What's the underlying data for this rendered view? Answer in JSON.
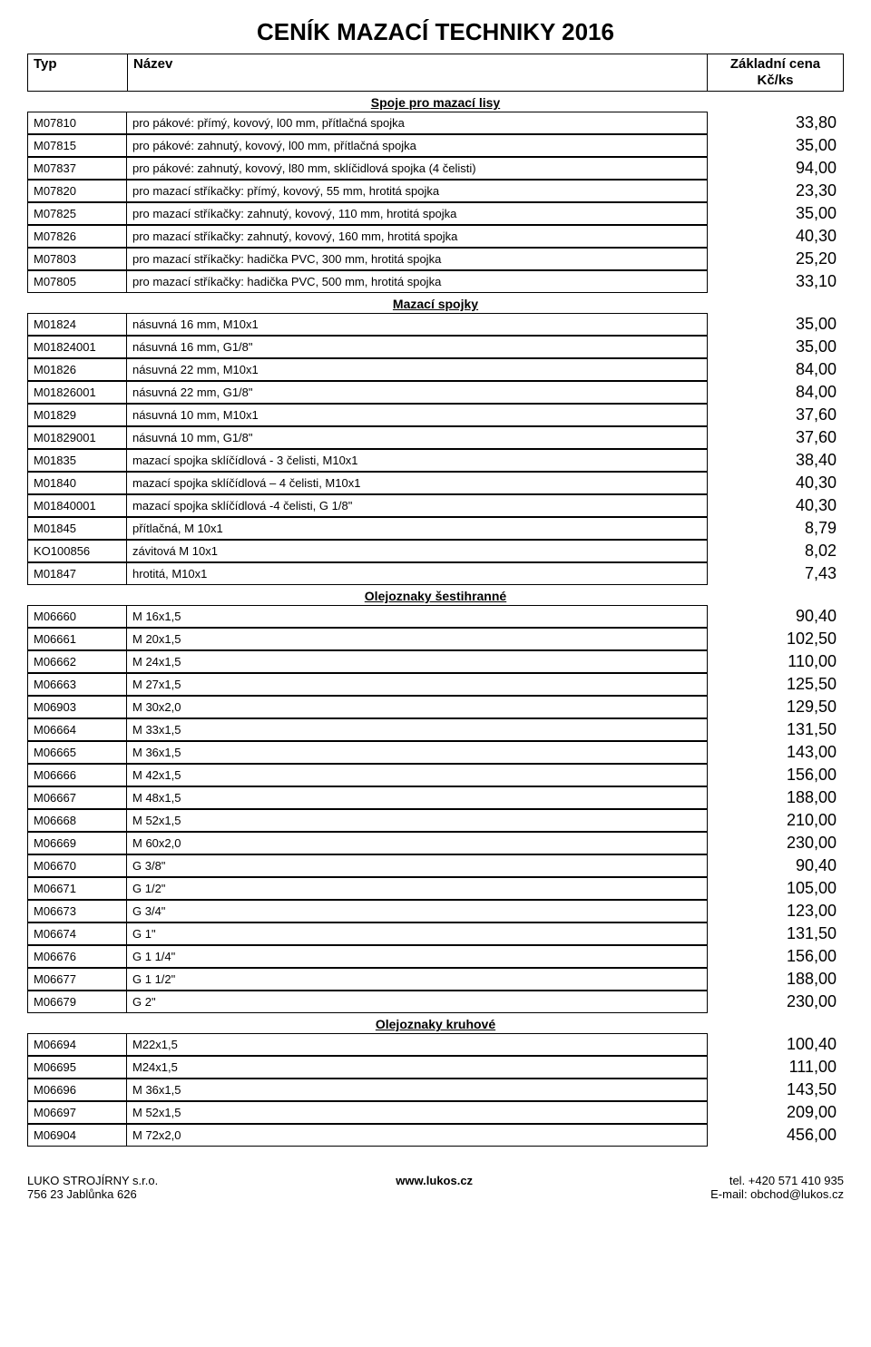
{
  "title": "CENÍK MAZACÍ TECHNIKY  2016",
  "header": {
    "typ": "Typ",
    "nazev": "Název",
    "cena": "Základní cena Kč/ks"
  },
  "sections": [
    {
      "title": "Spoje pro mazací lisy",
      "rows": [
        {
          "typ": "M07810",
          "nazev": "pro pákové: přímý, kovový, l00 mm, přítlačná spojka",
          "cena": "33,80"
        },
        {
          "typ": "M07815",
          "nazev": "pro pákové: zahnutý, kovový, l00 mm, přítlačná spojka",
          "cena": "35,00"
        },
        {
          "typ": "M07837",
          "nazev": "pro pákové: zahnutý, kovový, l80 mm, sklíčidlová spojka (4 čelisti)",
          "cena": "94,00"
        },
        {
          "typ": "M07820",
          "nazev": "pro mazací stříkačky: přímý, kovový, 55 mm, hrotitá spojka",
          "cena": "23,30"
        },
        {
          "typ": "M07825",
          "nazev": "pro mazací stříkačky: zahnutý, kovový, 110 mm, hrotitá spojka",
          "cena": "35,00"
        },
        {
          "typ": "M07826",
          "nazev": "pro mazací stříkačky: zahnutý, kovový, 160 mm, hrotitá spojka",
          "cena": "40,30"
        },
        {
          "typ": "M07803",
          "nazev": "pro mazací stříkačky: hadička PVC, 300 mm, hrotitá spojka",
          "cena": "25,20"
        },
        {
          "typ": "M07805",
          "nazev": "pro mazací stříkačky: hadička PVC, 500 mm, hrotitá spojka",
          "cena": "33,10"
        }
      ]
    },
    {
      "title": "Mazací spojky",
      "rows": [
        {
          "typ": "M01824",
          "nazev": "násuvná 16 mm, M10x1",
          "cena": "35,00"
        },
        {
          "typ": "M01824001",
          "nazev": "násuvná 16 mm, G1/8\"",
          "cena": "35,00"
        },
        {
          "typ": "M01826",
          "nazev": "násuvná 22 mm, M10x1",
          "cena": "84,00"
        },
        {
          "typ": "M01826001",
          "nazev": "násuvná 22 mm,  G1/8\"",
          "cena": "84,00"
        },
        {
          "typ": "M01829",
          "nazev": "násuvná 10 mm, M10x1",
          "cena": "37,60"
        },
        {
          "typ": "M01829001",
          "nazev": "násuvná 10 mm, G1/8\"",
          "cena": "37,60"
        },
        {
          "typ": "M01835",
          "nazev": "mazací spojka sklíčídlová - 3 čelisti, M10x1",
          "cena": "38,40"
        },
        {
          "typ": "M01840",
          "nazev": "mazací spojka sklíčídlová – 4 čelisti, M10x1",
          "cena": "40,30"
        },
        {
          "typ": "M01840001",
          "nazev": "mazací spojka sklíčídlová -4 čelisti, G 1/8\"",
          "cena": "40,30"
        },
        {
          "typ": "M01845",
          "nazev": "přítlačná, M 10x1",
          "cena": "8,79"
        },
        {
          "typ": "KO100856",
          "nazev": "závitová M 10x1",
          "cena": "8,02"
        },
        {
          "typ": "M01847",
          "nazev": "hrotitá, M10x1",
          "cena": "7,43"
        }
      ]
    },
    {
      "title": "Olejoznaky šestihranné",
      "rows": [
        {
          "typ": "M06660",
          "nazev": "M 16x1,5",
          "cena": "90,40"
        },
        {
          "typ": "M06661",
          "nazev": "M 20x1,5",
          "cena": "102,50"
        },
        {
          "typ": "M06662",
          "nazev": "M 24x1,5",
          "cena": "110,00"
        },
        {
          "typ": "M06663",
          "nazev": "M 27x1,5",
          "cena": "125,50"
        },
        {
          "typ": "M06903",
          "nazev": "M 30x2,0",
          "cena": "129,50"
        },
        {
          "typ": "M06664",
          "nazev": "M 33x1,5",
          "cena": "131,50"
        },
        {
          "typ": "M06665",
          "nazev": "M 36x1,5",
          "cena": "143,00"
        },
        {
          "typ": "M06666",
          "nazev": "M 42x1,5",
          "cena": "156,00"
        },
        {
          "typ": "M06667",
          "nazev": "M 48x1,5",
          "cena": "188,00"
        },
        {
          "typ": "M06668",
          "nazev": "M 52x1,5",
          "cena": "210,00"
        },
        {
          "typ": "M06669",
          "nazev": "M 60x2,0",
          "cena": "230,00"
        },
        {
          "typ": "M06670",
          "nazev": "G 3/8\"",
          "cena": "90,40"
        },
        {
          "typ": "M06671",
          "nazev": "G 1/2\"",
          "cena": "105,00"
        },
        {
          "typ": "M06673",
          "nazev": "G 3/4\"",
          "cena": "123,00"
        },
        {
          "typ": "M06674",
          "nazev": "G 1\"",
          "cena": "131,50"
        },
        {
          "typ": "M06676",
          "nazev": "G 1 1/4\"",
          "cena": "156,00"
        },
        {
          "typ": "M06677",
          "nazev": "G 1 1/2\"",
          "cena": "188,00"
        },
        {
          "typ": "M06679",
          "nazev": "G 2\"",
          "cena": "230,00"
        }
      ]
    },
    {
      "title": "Olejoznaky kruhové",
      "rows": [
        {
          "typ": "M06694",
          "nazev": "M22x1,5",
          "cena": "100,40"
        },
        {
          "typ": "M06695",
          "nazev": "M24x1,5",
          "cena": "111,00"
        },
        {
          "typ": "M06696",
          "nazev": "M 36x1,5",
          "cena": "143,50"
        },
        {
          "typ": "M06697",
          "nazev": "M 52x1,5",
          "cena": "209,00"
        },
        {
          "typ": "M06904",
          "nazev": "M 72x2,0",
          "cena": "456,00"
        }
      ]
    }
  ],
  "footer": {
    "left1": "LUKO STROJÍRNY s.r.o.",
    "left2": "756 23 Jablůnka 626",
    "center": "www.lukos.cz",
    "right1": "tel. +420 571 410 935",
    "right2": "E-mail: obchod@lukos.cz"
  }
}
